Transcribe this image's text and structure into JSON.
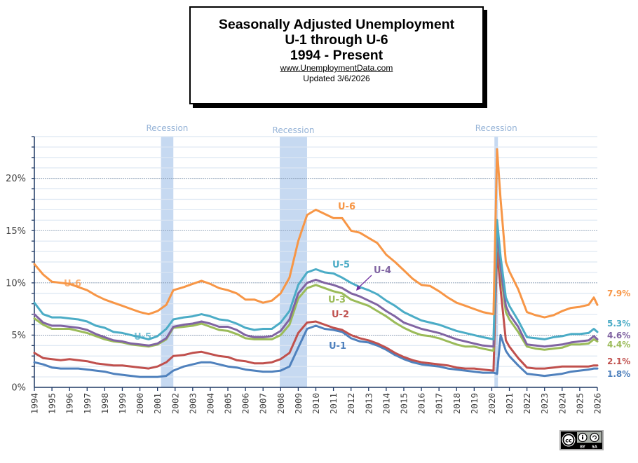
{
  "header": {
    "title_line1": "Seasonally Adjusted Unemployment",
    "title_line2": "U-1 through U-6",
    "title_line3": "1994 - Present",
    "website": "www.UnemploymentData.com",
    "updated": "Updated  3/6/2026"
  },
  "license": {
    "icon": "cc-by-sa-icon",
    "labels": [
      "BY",
      "SA"
    ]
  },
  "chart_data": {
    "type": "line",
    "title": "Seasonally Adjusted Unemployment U-1 through U-6 1994 - Present",
    "xlabel": "",
    "ylabel": "",
    "xlim": [
      1994,
      2026
    ],
    "ylim": [
      0,
      24
    ],
    "grid": true,
    "x_ticks": [
      "1994",
      "1995",
      "1996",
      "1997",
      "1998",
      "1999",
      "2000",
      "2001",
      "2002",
      "2003",
      "2004",
      "2005",
      "2006",
      "2007",
      "2008",
      "2009",
      "2010",
      "2011",
      "2012",
      "2013",
      "2014",
      "2015",
      "2016",
      "2017",
      "2018",
      "2019",
      "2020",
      "2021",
      "2022",
      "2023",
      "2024",
      "2025",
      "2026"
    ],
    "y_ticks": [
      {
        "value": 0,
        "label": "0%"
      },
      {
        "value": 5,
        "label": "5%"
      },
      {
        "value": 10,
        "label": "10%"
      },
      {
        "value": 15,
        "label": "15%"
      },
      {
        "value": 20,
        "label": "20%"
      }
    ],
    "recessions": [
      {
        "label": "Recession",
        "start": 2001.2,
        "end": 2001.9
      },
      {
        "label": "Recession",
        "start": 2007.95,
        "end": 2009.5
      },
      {
        "label": "Recession",
        "start": 2020.15,
        "end": 2020.35
      }
    ],
    "x": [
      1994,
      1994.5,
      1995,
      1995.5,
      1996,
      1996.5,
      1997,
      1997.5,
      1998,
      1998.5,
      1999,
      1999.5,
      2000,
      2000.5,
      2001,
      2001.5,
      2001.9,
      2002.5,
      2003,
      2003.5,
      2004,
      2004.5,
      2005,
      2005.5,
      2006,
      2006.5,
      2007,
      2007.5,
      2008,
      2008.5,
      2009,
      2009.5,
      2010,
      2010.5,
      2011,
      2011.5,
      2012,
      2012.5,
      2013,
      2013.5,
      2014,
      2014.5,
      2015,
      2015.5,
      2016,
      2016.5,
      2017,
      2017.5,
      2018,
      2018.5,
      2019,
      2019.5,
      2020.1,
      2020.3,
      2020.5,
      2020.8,
      2021,
      2021.5,
      2022,
      2022.5,
      2023,
      2023.5,
      2024,
      2024.5,
      2025,
      2025.5,
      2025.8,
      2026
    ],
    "series": [
      {
        "name": "U-6",
        "color": "#f79646",
        "end_label": "7.9%",
        "values": [
          11.8,
          10.8,
          10.1,
          10.0,
          9.9,
          9.6,
          9.3,
          8.8,
          8.4,
          8.1,
          7.8,
          7.5,
          7.2,
          7.0,
          7.3,
          7.9,
          9.3,
          9.6,
          9.9,
          10.2,
          9.9,
          9.5,
          9.3,
          9.0,
          8.4,
          8.4,
          8.1,
          8.3,
          9.0,
          10.5,
          14.0,
          16.5,
          17.0,
          16.6,
          16.2,
          16.2,
          15.0,
          14.8,
          14.3,
          13.8,
          12.7,
          12.0,
          11.2,
          10.4,
          9.8,
          9.7,
          9.2,
          8.6,
          8.1,
          7.8,
          7.5,
          7.2,
          7.0,
          22.8,
          18.0,
          12.0,
          11.1,
          9.4,
          7.2,
          6.9,
          6.7,
          6.9,
          7.3,
          7.6,
          7.7,
          7.9,
          8.6,
          7.9
        ]
      },
      {
        "name": "U-5",
        "color": "#4bacc6",
        "end_label": "5.3%",
        "values": [
          8.1,
          7.0,
          6.7,
          6.7,
          6.6,
          6.5,
          6.3,
          5.9,
          5.7,
          5.3,
          5.2,
          5.0,
          4.8,
          4.6,
          4.9,
          5.6,
          6.5,
          6.7,
          6.8,
          7.0,
          6.8,
          6.5,
          6.4,
          6.1,
          5.7,
          5.5,
          5.6,
          5.6,
          6.2,
          7.3,
          9.8,
          11.0,
          11.3,
          11.0,
          10.9,
          10.5,
          10.0,
          9.6,
          9.3,
          8.9,
          8.3,
          7.8,
          7.2,
          6.8,
          6.4,
          6.2,
          6.0,
          5.7,
          5.4,
          5.2,
          5.0,
          4.8,
          4.6,
          16.0,
          12.5,
          8.6,
          7.8,
          6.4,
          4.8,
          4.7,
          4.6,
          4.8,
          4.9,
          5.1,
          5.1,
          5.2,
          5.6,
          5.3
        ]
      },
      {
        "name": "U-4",
        "color": "#8064a2",
        "end_label": "4.6%",
        "values": [
          7.0,
          6.2,
          5.9,
          5.9,
          5.8,
          5.7,
          5.5,
          5.1,
          4.8,
          4.5,
          4.4,
          4.2,
          4.1,
          4.0,
          4.2,
          4.7,
          5.8,
          6.0,
          6.1,
          6.3,
          6.1,
          5.8,
          5.8,
          5.5,
          5.0,
          4.8,
          4.8,
          4.9,
          5.4,
          6.5,
          9.0,
          10.0,
          10.3,
          10.0,
          9.8,
          9.5,
          9.0,
          8.7,
          8.3,
          7.9,
          7.3,
          6.8,
          6.2,
          5.9,
          5.6,
          5.4,
          5.2,
          4.9,
          4.6,
          4.4,
          4.2,
          4.0,
          3.9,
          15.0,
          11.5,
          7.8,
          7.0,
          5.8,
          4.1,
          4.0,
          3.9,
          4.0,
          4.1,
          4.3,
          4.4,
          4.5,
          4.9,
          4.6
        ]
      },
      {
        "name": "U-3",
        "color": "#9bbb59",
        "end_label": "4.4%",
        "values": [
          6.6,
          6.0,
          5.6,
          5.6,
          5.6,
          5.4,
          5.2,
          4.9,
          4.6,
          4.4,
          4.3,
          4.1,
          4.0,
          3.9,
          4.1,
          4.6,
          5.7,
          5.8,
          5.9,
          6.1,
          5.8,
          5.5,
          5.4,
          5.1,
          4.7,
          4.6,
          4.6,
          4.6,
          5.0,
          6.0,
          8.5,
          9.5,
          9.8,
          9.5,
          9.2,
          9.0,
          8.4,
          8.1,
          7.8,
          7.3,
          6.8,
          6.2,
          5.7,
          5.3,
          5.0,
          4.9,
          4.7,
          4.4,
          4.1,
          3.9,
          3.9,
          3.7,
          3.5,
          14.7,
          11.1,
          7.2,
          6.5,
          5.3,
          3.9,
          3.7,
          3.6,
          3.7,
          3.8,
          4.1,
          4.1,
          4.2,
          4.6,
          4.4
        ]
      },
      {
        "name": "U-2",
        "color": "#c0504d",
        "end_label": "2.1%",
        "values": [
          3.3,
          2.8,
          2.7,
          2.6,
          2.7,
          2.6,
          2.5,
          2.3,
          2.2,
          2.1,
          2.1,
          2.0,
          1.9,
          1.8,
          2.0,
          2.4,
          3.0,
          3.1,
          3.3,
          3.4,
          3.2,
          3.0,
          2.9,
          2.6,
          2.5,
          2.3,
          2.3,
          2.4,
          2.7,
          3.3,
          5.2,
          6.2,
          6.3,
          6.0,
          5.7,
          5.5,
          5.0,
          4.7,
          4.5,
          4.2,
          3.8,
          3.3,
          2.9,
          2.6,
          2.4,
          2.3,
          2.2,
          2.1,
          1.9,
          1.8,
          1.8,
          1.7,
          1.6,
          13.2,
          9.4,
          4.5,
          3.9,
          2.8,
          1.9,
          1.8,
          1.8,
          1.9,
          2.0,
          2.0,
          2.0,
          2.0,
          2.1,
          2.1
        ]
      },
      {
        "name": "U-1",
        "color": "#4f81bd",
        "end_label": "1.8%",
        "values": [
          2.4,
          2.2,
          1.9,
          1.8,
          1.8,
          1.8,
          1.7,
          1.6,
          1.5,
          1.3,
          1.2,
          1.1,
          1.0,
          1.0,
          1.0,
          1.1,
          1.6,
          2.0,
          2.2,
          2.4,
          2.4,
          2.2,
          2.0,
          1.9,
          1.7,
          1.6,
          1.5,
          1.5,
          1.6,
          2.0,
          3.8,
          5.6,
          5.9,
          5.6,
          5.5,
          5.3,
          4.7,
          4.4,
          4.3,
          4.0,
          3.6,
          3.1,
          2.7,
          2.4,
          2.2,
          2.1,
          2.0,
          1.8,
          1.7,
          1.6,
          1.5,
          1.4,
          1.4,
          1.3,
          5.0,
          3.5,
          3.0,
          2.1,
          1.3,
          1.2,
          1.1,
          1.2,
          1.3,
          1.5,
          1.6,
          1.7,
          1.8,
          1.8
        ]
      }
    ],
    "annotations": [
      {
        "text": "U-6",
        "series": "U-6",
        "at": 2011.8
      },
      {
        "text": "U-5",
        "series": "U-5",
        "at": 2010.9
      },
      {
        "text": "U-4",
        "series": "U-4",
        "at": 2013.0
      },
      {
        "text": "U-3",
        "series": "U-3",
        "at": 2010.2
      },
      {
        "text": "U-2",
        "series": "U-2",
        "at": 2011.0
      },
      {
        "text": "U-1",
        "series": "U-1",
        "at": 2011.0
      },
      {
        "text": "U-6",
        "series": "U-6",
        "at": 1996.0
      },
      {
        "text": "U-5",
        "series": "U-5",
        "at": 2000.0
      }
    ]
  }
}
